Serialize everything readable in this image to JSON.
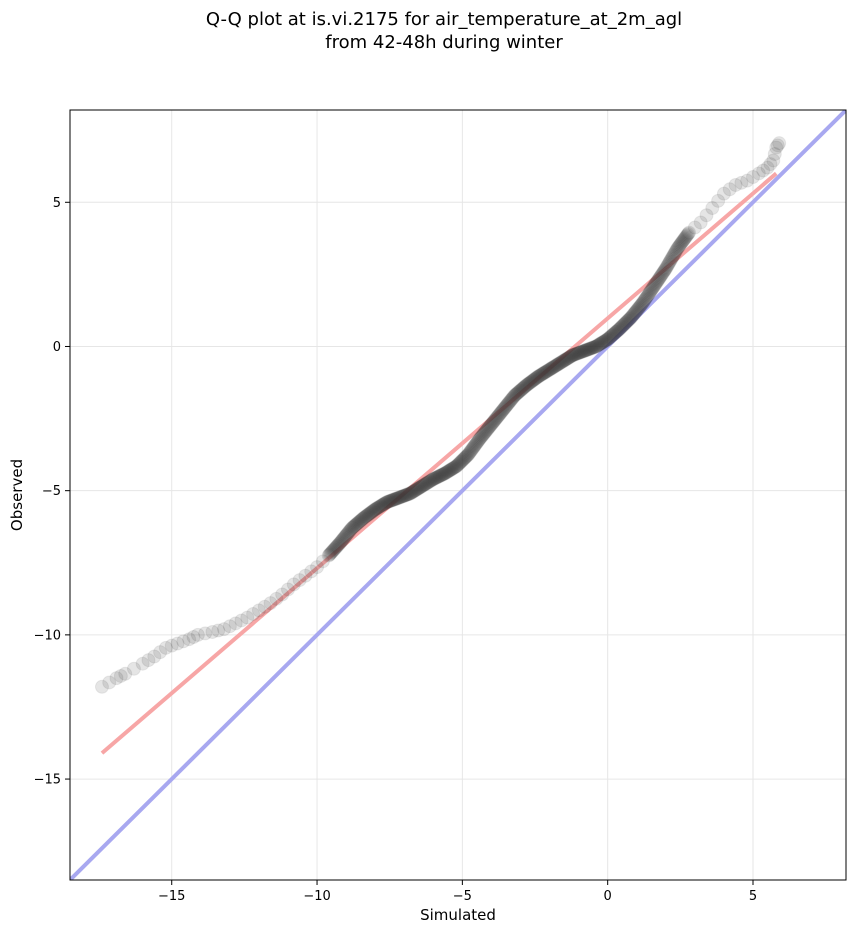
{
  "chart_data": {
    "type": "scatter",
    "title_lines": [
      "Q-Q plot at is.vi.2175 for air_temperature_at_2m_agl",
      "from 42-48h during winter"
    ],
    "xlabel": "Simulated",
    "ylabel": "Observed",
    "xlim": [
      -18.5,
      8.2
    ],
    "ylim": [
      -18.5,
      8.2
    ],
    "xticks": [
      -15,
      -10,
      -5,
      0,
      5
    ],
    "yticks": [
      -15,
      -10,
      -5,
      0,
      5
    ],
    "xtick_labels": [
      "−15",
      "−10",
      "−5",
      "0",
      "5"
    ],
    "ytick_labels": [
      "−15",
      "−10",
      "−5",
      "0",
      "5"
    ],
    "grid": true,
    "quantile_curve": [
      [
        -17.4,
        -11.8
      ],
      [
        -16.9,
        -11.5
      ],
      [
        -16.6,
        -11.35
      ],
      [
        -16.0,
        -11.0
      ],
      [
        -15.6,
        -10.75
      ],
      [
        -15.2,
        -10.45
      ],
      [
        -14.8,
        -10.3
      ],
      [
        -14.4,
        -10.15
      ],
      [
        -14.1,
        -10.0
      ],
      [
        -13.6,
        -9.9
      ],
      [
        -13.2,
        -9.8
      ],
      [
        -12.8,
        -9.6
      ],
      [
        -12.4,
        -9.4
      ],
      [
        -12.0,
        -9.15
      ],
      [
        -11.6,
        -8.9
      ],
      [
        -11.2,
        -8.6
      ],
      [
        -10.8,
        -8.25
      ],
      [
        -10.4,
        -7.95
      ],
      [
        -10.0,
        -7.65
      ],
      [
        -9.6,
        -7.25
      ],
      [
        -9.2,
        -6.8
      ],
      [
        -8.8,
        -6.3
      ],
      [
        -8.4,
        -5.95
      ],
      [
        -8.0,
        -5.65
      ],
      [
        -7.6,
        -5.4
      ],
      [
        -7.2,
        -5.25
      ],
      [
        -6.8,
        -5.1
      ],
      [
        -6.4,
        -4.85
      ],
      [
        -6.0,
        -4.6
      ],
      [
        -5.6,
        -4.4
      ],
      [
        -5.2,
        -4.15
      ],
      [
        -4.8,
        -3.75
      ],
      [
        -4.4,
        -3.2
      ],
      [
        -4.0,
        -2.7
      ],
      [
        -3.6,
        -2.2
      ],
      [
        -3.2,
        -1.7
      ],
      [
        -2.8,
        -1.35
      ],
      [
        -2.4,
        -1.05
      ],
      [
        -2.0,
        -0.8
      ],
      [
        -1.6,
        -0.55
      ],
      [
        -1.2,
        -0.3
      ],
      [
        -0.8,
        -0.15
      ],
      [
        -0.4,
        0.0
      ],
      [
        0.0,
        0.25
      ],
      [
        0.4,
        0.6
      ],
      [
        0.8,
        1.0
      ],
      [
        1.2,
        1.5
      ],
      [
        1.6,
        2.1
      ],
      [
        2.0,
        2.7
      ],
      [
        2.4,
        3.4
      ],
      [
        2.8,
        3.95
      ],
      [
        3.2,
        4.3
      ],
      [
        3.6,
        4.8
      ],
      [
        4.0,
        5.3
      ],
      [
        4.4,
        5.6
      ],
      [
        4.8,
        5.75
      ],
      [
        5.2,
        6.0
      ],
      [
        5.5,
        6.2
      ],
      [
        5.7,
        6.45
      ],
      [
        5.8,
        6.9
      ],
      [
        5.9,
        7.05
      ]
    ],
    "fit_line": {
      "color": "#f7a6a6",
      "x": [
        -17.4,
        5.8
      ],
      "y": [
        -14.1,
        6.0
      ]
    },
    "identity_line": {
      "color": "#a8a8f0"
    },
    "point_color": "#333333"
  }
}
